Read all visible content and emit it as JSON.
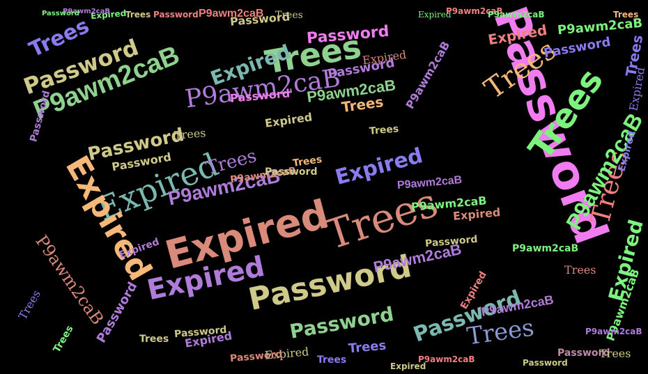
{
  "words": [
    "Password",
    "Trees",
    "Expired",
    "P9awm2caB"
  ],
  "colors": {
    "pink": "#f07cf0",
    "green": "#8fd18f",
    "lime": "#7ef27e",
    "salmon": "#d98a7a",
    "rose": "#f08080",
    "orange": "#f5b878",
    "khaki": "#cfc98a",
    "purple": "#b07cd9",
    "violet": "#8a7cf0",
    "teal": "#7ab8b0",
    "steel": "#8a9ad0",
    "mauve": "#c08aa8"
  }
}
